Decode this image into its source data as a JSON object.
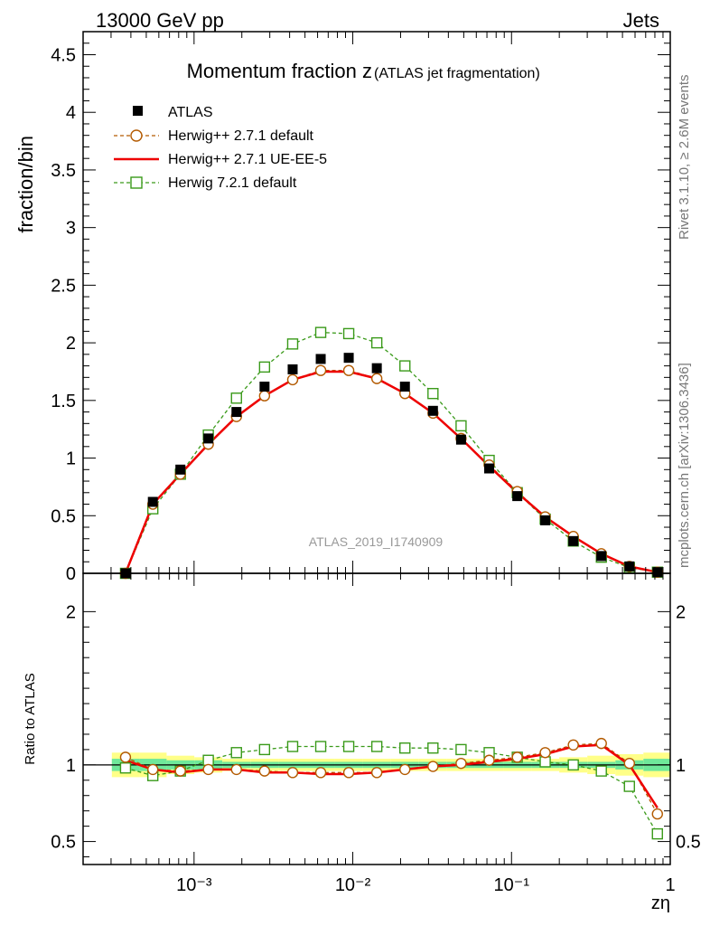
{
  "header": {
    "left": "13000 GeV pp",
    "right": "Jets"
  },
  "side_text": {
    "rivet": "Rivet 3.1.10, ≥ 2.6M events",
    "mcplots": "mcplots.cern.ch [arXiv:1306.3436]"
  },
  "chart_data": [
    {
      "type": "scatter",
      "panel": "main",
      "title_main": "Momentum fraction z",
      "title_sub": "(ATLAS jet fragmentation)",
      "ylabel": "fraction/bin",
      "xlabel": "zη",
      "watermark": "ATLAS_2019_I1740909",
      "x_scale": "log",
      "xlim": [
        0.0002,
        1.0
      ],
      "ylim": [
        0,
        4.7
      ],
      "yticks": [
        0,
        0.5,
        1,
        1.5,
        2,
        2.5,
        3,
        3.5,
        4,
        4.5
      ],
      "ytick_labels": [
        "0",
        "0.5",
        "1",
        "1.5",
        "2",
        "2.5",
        "3",
        "3.5",
        "4",
        "4.5"
      ],
      "xtick_labels": [
        "10⁻³",
        "10⁻²",
        "10⁻¹",
        "1"
      ],
      "legend_position": "top-left",
      "x": [
        0.00037,
        0.00055,
        0.00082,
        0.00123,
        0.00185,
        0.00278,
        0.00418,
        0.00628,
        0.00943,
        0.01417,
        0.0213,
        0.032,
        0.0481,
        0.0723,
        0.1087,
        0.163,
        0.245,
        0.368,
        0.553,
        0.83
      ],
      "series": [
        {
          "name": "ATLAS",
          "color": "#000000",
          "marker": "filled-square",
          "values": [
            0.0,
            0.62,
            0.9,
            1.17,
            1.4,
            1.62,
            1.77,
            1.86,
            1.87,
            1.78,
            1.62,
            1.41,
            1.16,
            0.91,
            0.67,
            0.46,
            0.28,
            0.15,
            0.06,
            0.01
          ]
        },
        {
          "name": "Herwig++ 2.7.1 default",
          "color": "#b35a00",
          "marker": "open-circle",
          "line": "dashed",
          "values": [
            0.0,
            0.6,
            0.86,
            1.12,
            1.36,
            1.54,
            1.68,
            1.76,
            1.76,
            1.69,
            1.56,
            1.39,
            1.17,
            0.94,
            0.71,
            0.49,
            0.32,
            0.17,
            0.06,
            0.01
          ]
        },
        {
          "name": "Herwig++ 2.7.1 UE-EE-5",
          "color": "#ee0000",
          "marker": "none",
          "line": "solid",
          "values": [
            0.0,
            0.6,
            0.86,
            1.12,
            1.36,
            1.54,
            1.68,
            1.75,
            1.75,
            1.69,
            1.56,
            1.39,
            1.17,
            0.93,
            0.7,
            0.49,
            0.32,
            0.17,
            0.06,
            0.01
          ]
        },
        {
          "name": "Herwig 7.2.1 default",
          "color": "#3a9a1a",
          "marker": "open-square",
          "line": "dashed",
          "values": [
            0.0,
            0.56,
            0.86,
            1.2,
            1.52,
            1.79,
            1.99,
            2.09,
            2.08,
            2.0,
            1.8,
            1.56,
            1.28,
            0.98,
            0.7,
            0.47,
            0.28,
            0.14,
            0.05,
            0.01
          ]
        }
      ]
    },
    {
      "type": "line",
      "panel": "ratio",
      "ylabel": "Ratio to ATLAS",
      "xlabel": "zη",
      "x_scale": "log",
      "xlim": [
        0.0002,
        1.0
      ],
      "ylim": [
        0.35,
        2.25
      ],
      "yticks": [
        0.5,
        1,
        2
      ],
      "ytick_labels": [
        "0.5",
        "1",
        "2"
      ],
      "x": [
        0.00037,
        0.00055,
        0.00082,
        0.00123,
        0.00185,
        0.00278,
        0.00418,
        0.00628,
        0.00943,
        0.01417,
        0.0213,
        0.032,
        0.0481,
        0.0723,
        0.1087,
        0.163,
        0.245,
        0.368,
        0.553,
        0.83
      ],
      "band": {
        "color_inner": "#6fe89a",
        "color_outer": "#ffff88",
        "inner": [
          0.04,
          0.04,
          0.03,
          0.03,
          0.02,
          0.02,
          0.02,
          0.02,
          0.02,
          0.02,
          0.02,
          0.02,
          0.02,
          0.02,
          0.02,
          0.02,
          0.02,
          0.02,
          0.03,
          0.04
        ],
        "outer": [
          0.08,
          0.08,
          0.06,
          0.05,
          0.04,
          0.04,
          0.04,
          0.04,
          0.04,
          0.04,
          0.04,
          0.04,
          0.04,
          0.04,
          0.04,
          0.04,
          0.05,
          0.06,
          0.07,
          0.08
        ]
      },
      "series": [
        {
          "name": "Herwig++ 2.7.1 default",
          "color": "#b35a00",
          "marker": "open-circle",
          "line": "dashed",
          "values": [
            1.05,
            0.97,
            0.96,
            0.97,
            0.97,
            0.96,
            0.95,
            0.95,
            0.95,
            0.95,
            0.97,
            0.99,
            1.01,
            1.03,
            1.05,
            1.08,
            1.13,
            1.14,
            1.01,
            0.68
          ]
        },
        {
          "name": "Herwig++ 2.7.1 UE-EE-5",
          "color": "#ee0000",
          "marker": "none",
          "line": "solid",
          "values": [
            1.03,
            0.97,
            0.95,
            0.97,
            0.97,
            0.95,
            0.95,
            0.94,
            0.94,
            0.95,
            0.97,
            0.99,
            1.0,
            1.02,
            1.04,
            1.07,
            1.12,
            1.13,
            1.0,
            0.72
          ]
        },
        {
          "name": "Herwig 7.2.1 default",
          "color": "#3a9a1a",
          "marker": "open-square",
          "line": "dashed",
          "values": [
            0.98,
            0.93,
            0.96,
            1.03,
            1.08,
            1.1,
            1.12,
            1.12,
            1.12,
            1.12,
            1.11,
            1.11,
            1.1,
            1.08,
            1.05,
            1.02,
            1.0,
            0.96,
            0.86,
            0.55
          ]
        }
      ]
    }
  ]
}
